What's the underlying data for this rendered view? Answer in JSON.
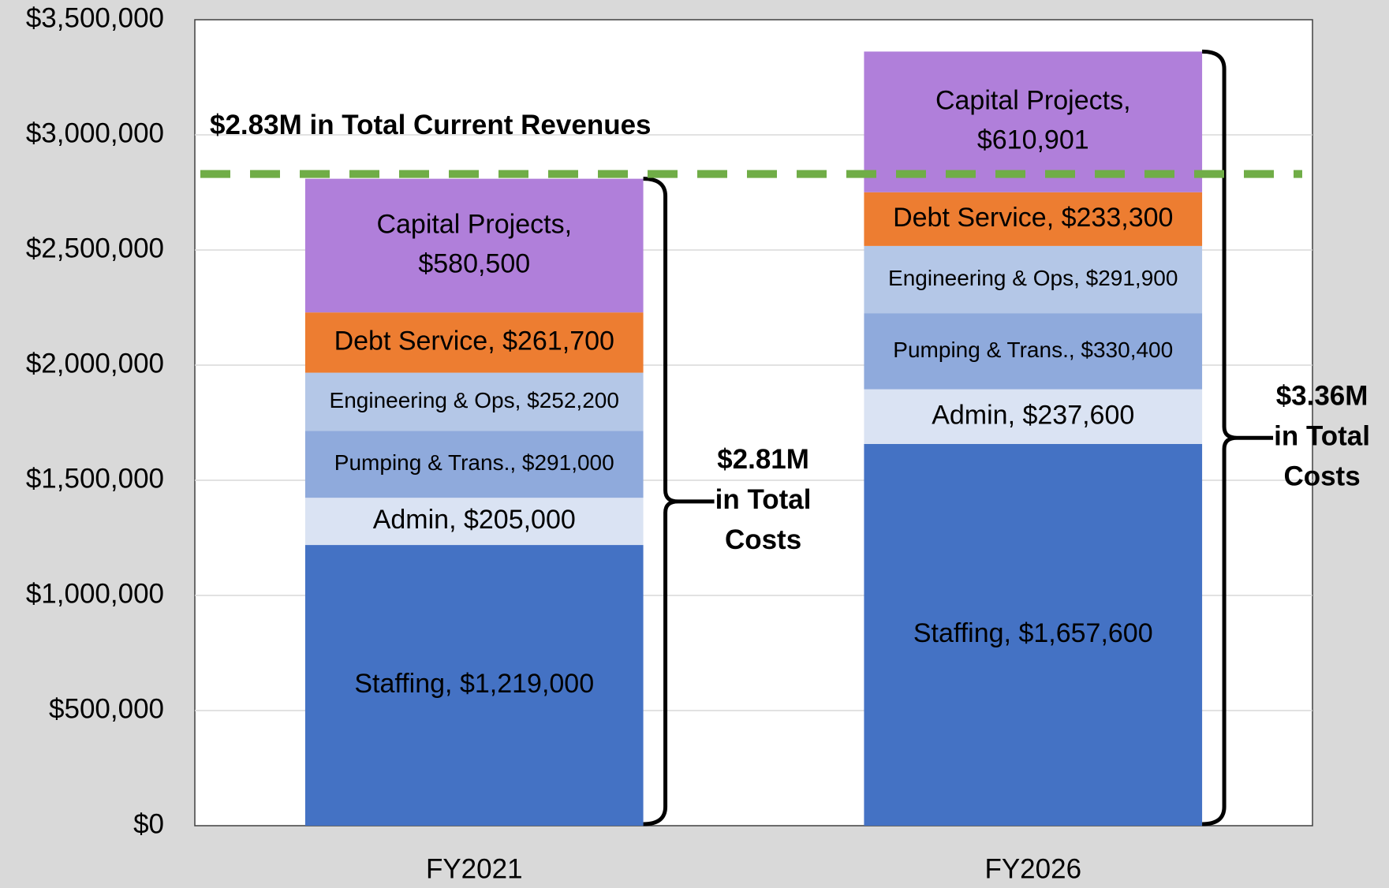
{
  "chart_data": {
    "type": "stacked_bar",
    "categories": [
      "FY2021",
      "FY2026"
    ],
    "series": [
      {
        "name": "Staffing",
        "color": "#4472c4",
        "values": [
          1219000,
          1657600
        ],
        "value_labels": [
          "Staffing, $1,219,000",
          "Staffing, $1,657,600"
        ]
      },
      {
        "name": "Admin",
        "color": "#dae3f3",
        "values": [
          205000,
          237600
        ],
        "value_labels": [
          "Admin, $205,000",
          "Admin, $237,600"
        ]
      },
      {
        "name": "Pumping & Trans.",
        "color": "#8faadc",
        "values": [
          291000,
          330400
        ],
        "value_labels": [
          "Pumping & Trans., $291,000",
          "Pumping & Trans., $330,400"
        ]
      },
      {
        "name": "Engineering & Ops",
        "color": "#b4c7e7",
        "values": [
          252200,
          291900
        ],
        "value_labels": [
          "Engineering & Ops, $252,200",
          "Engineering & Ops, $291,900"
        ]
      },
      {
        "name": "Debt Service",
        "color": "#ed7d31",
        "values": [
          261700,
          233300
        ],
        "value_labels": [
          "Debt Service, $261,700",
          "Debt Service, $233,300"
        ]
      },
      {
        "name": "Capital Projects",
        "color": "#b07fda",
        "values": [
          580500,
          610901
        ],
        "value_labels": [
          "Capital Projects, $580,500",
          "Capital Projects, $610,901"
        ]
      }
    ],
    "ylim": [
      0,
      3500000
    ],
    "yticks": [
      {
        "value": 0,
        "label": "$0"
      },
      {
        "value": 500000,
        "label": "$500,000"
      },
      {
        "value": 1000000,
        "label": "$1,000,000"
      },
      {
        "value": 1500000,
        "label": "$1,500,000"
      },
      {
        "value": 2000000,
        "label": "$2,000,000"
      },
      {
        "value": 2500000,
        "label": "$2,500,000"
      },
      {
        "value": 3000000,
        "label": "$3,000,000"
      },
      {
        "value": 3500000,
        "label": "$3,500,000"
      }
    ],
    "grid": true,
    "reference_line": {
      "value": 2830000,
      "label": "$2.83M in Total Current Revenues",
      "color": "#70ad47"
    },
    "total_annotations": [
      [
        "$2.81M",
        "in Total",
        "Costs"
      ],
      [
        "$3.36M",
        "in Total",
        "Costs"
      ]
    ]
  }
}
